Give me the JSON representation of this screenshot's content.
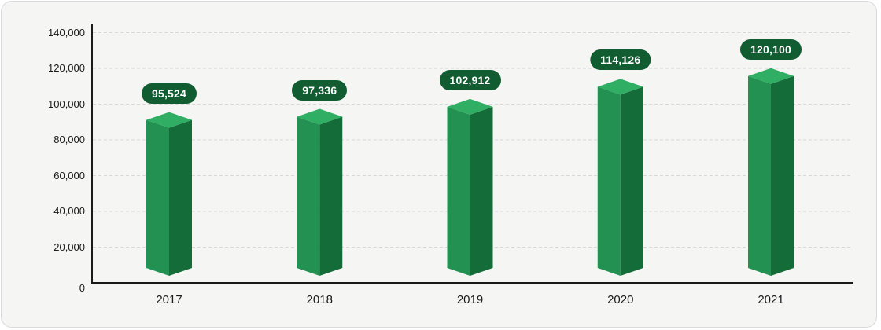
{
  "chart_data": {
    "type": "bar",
    "title": "",
    "xlabel": "",
    "ylabel": "",
    "categories": [
      "2017",
      "2018",
      "2019",
      "2020",
      "2021"
    ],
    "values": [
      95524,
      97336,
      102912,
      114126,
      120100
    ],
    "value_labels": [
      "95,524",
      "97,336",
      "102,912",
      "114,126",
      "120,100"
    ],
    "y_ticks": [
      0,
      20000,
      40000,
      60000,
      80000,
      100000,
      120000,
      140000
    ],
    "y_tick_labels": [
      "0",
      "20,000",
      "40,000",
      "60,000",
      "80,000",
      "100,000",
      "120,000",
      "140,000"
    ],
    "ylim": [
      0,
      140000
    ],
    "grid": "horizontal-dashed",
    "legend": "none",
    "bar_style": "3d-prism",
    "colors": {
      "bar_top": "#2fae64",
      "bar_left": "#239151",
      "bar_right": "#146c39",
      "badge_bg": "#115c30",
      "badge_text": "#ffffff",
      "axis": "#1a1a1a",
      "tick_text": "#1a1a1a",
      "gridline": "#d8d8d8",
      "card_bg": "#f5f5f4",
      "card_border": "#d9d9d9"
    }
  }
}
